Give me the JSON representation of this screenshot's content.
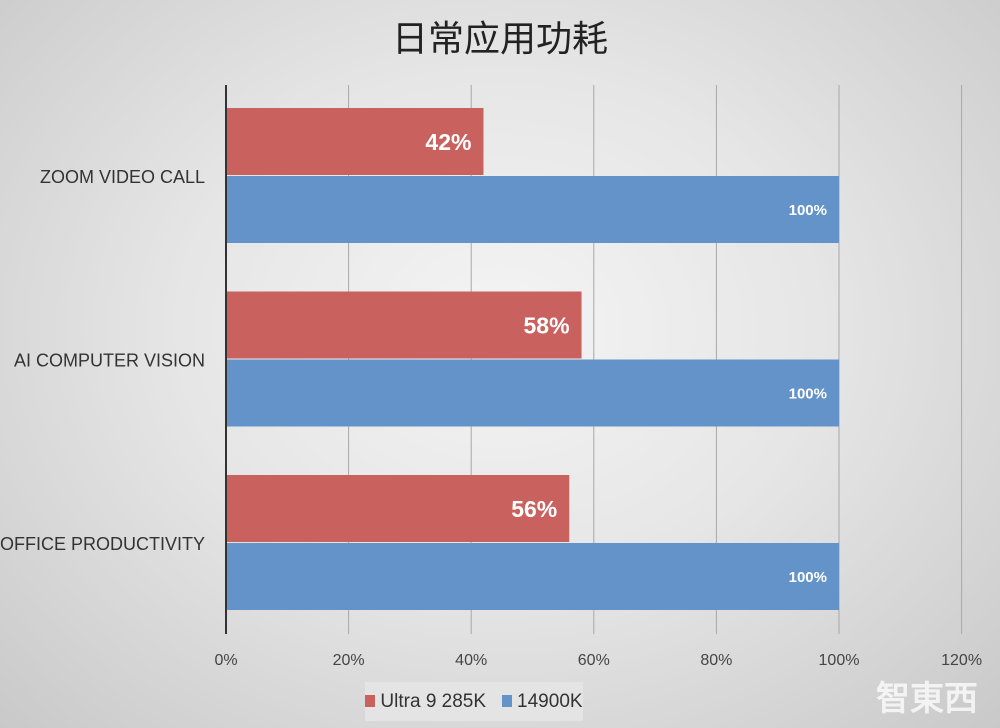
{
  "chart_data": {
    "type": "bar",
    "orientation": "horizontal",
    "title": "日常应用功耗",
    "categories": [
      "ZOOM VIDEO CALL",
      "AI COMPUTER VISION",
      "OFFICE PRODUCTIVITY"
    ],
    "series": [
      {
        "name": "Ultra 9 285K",
        "color": "#c9625f",
        "values": [
          42,
          58,
          56
        ],
        "labels": [
          "42%",
          "58%",
          "56%"
        ]
      },
      {
        "name": "14900K",
        "color": "#6393c8",
        "values": [
          100,
          100,
          100
        ],
        "labels": [
          "100%",
          "100%",
          "100%"
        ]
      }
    ],
    "xlim": [
      0,
      120
    ],
    "xticks": [
      "0%",
      "20%",
      "40%",
      "60%",
      "80%",
      "100%",
      "120%"
    ],
    "grid": true,
    "legend": "bottom"
  },
  "watermark": "智東西"
}
